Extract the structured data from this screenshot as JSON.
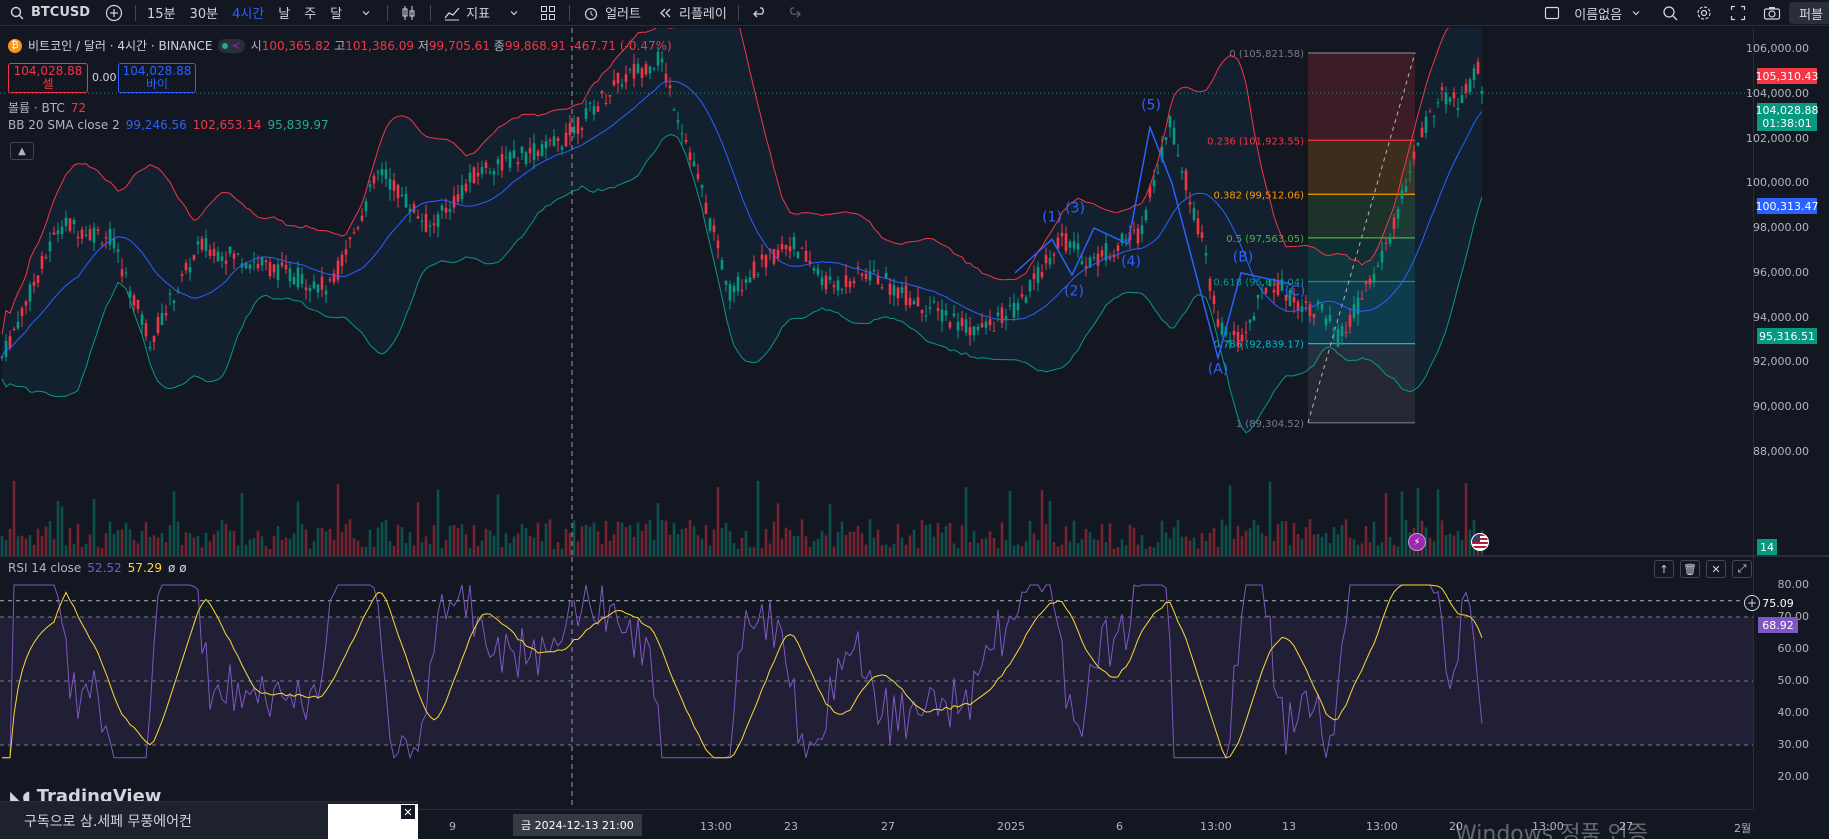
{
  "toolbar": {
    "symbol": "BTCUSD",
    "intervals": [
      "15분",
      "30분",
      "4시간",
      "날",
      "주",
      "달"
    ],
    "active_interval": "4시간",
    "indicators_label": "지표",
    "alert_label": "얼러트",
    "replay_label": "리플레이",
    "layout_name": "이름없음",
    "publish_label": "퍼블"
  },
  "legend": {
    "title": "비트코인 / 달러 · 4시간 · BINANCE",
    "open_label": "시",
    "open": "100,365.82",
    "high_label": "고",
    "high": "101,386.09",
    "low_label": "저",
    "low": "99,705.61",
    "close_label": "종",
    "close": "99,868.91",
    "change": "-467.71 (-0.47%)",
    "sell_price": "104,028.88",
    "sell_label": "셀",
    "spread": "0.00",
    "buy_price": "104,028.88",
    "buy_label": "바이",
    "volume_label": "볼륨 · BTC",
    "volume_value": "72",
    "bb_label": "BB 20 SMA close 2",
    "bb_basis": "99,246.56",
    "bb_upper": "102,653.14",
    "bb_lower": "95,839.97"
  },
  "rsi_legend": {
    "label": "RSI 14 close",
    "rsi": "52.52",
    "ma": "57.29",
    "extra": "ø ø"
  },
  "fib_levels": [
    {
      "label": "0 (105,821.58)",
      "price": 105821.58,
      "color": "#787b86"
    },
    {
      "label": "0.236 (101,923.55)",
      "price": 101923.55,
      "color": "#f23645"
    },
    {
      "label": "0.382 (99,512.06)",
      "price": 99512.06,
      "color": "#ff9800"
    },
    {
      "label": "0.5 (97,563.05)",
      "price": 97563.05,
      "color": "#4caf50"
    },
    {
      "label": "0.618 (95,614.04)",
      "price": 95614.04,
      "color": "#089981"
    },
    {
      "label": "0.786 (92,839.17)",
      "price": 92839.17,
      "color": "#00bcd4"
    },
    {
      "label": "1 (89,304.52)",
      "price": 89304.52,
      "color": "#787b86"
    }
  ],
  "elliott_labels": [
    "(1)",
    "(2)",
    "(3)",
    "(4)",
    "(5)",
    "(A)",
    "(B)",
    "(C)"
  ],
  "price_axis": {
    "ticks": [
      "106,000.00",
      "104,000.00",
      "102,000.00",
      "100,000.00",
      "98,000.00",
      "96,000.00",
      "94,000.00",
      "92,000.00",
      "90,000.00",
      "88,000.00"
    ],
    "tag_high": "105,310.43",
    "tag_last": "104,028.88",
    "tag_countdown": "01:38:01",
    "tag_bb_basis": "100,313.47",
    "tag_bb_lower": "95,316.51",
    "tag_volume": "14",
    "rsi_ticks": [
      "80.00",
      "70.00",
      "60.00",
      "50.00",
      "40.00",
      "30.00",
      "20.00"
    ],
    "rsi_tag_1": "75.09",
    "rsi_tag_2": "68.92"
  },
  "time_axis": {
    "labels": [
      "20",
      "9",
      "13:00",
      "23",
      "27",
      "2025",
      "6",
      "13:00",
      "13",
      "13:00",
      "20",
      "13:00",
      "27",
      "2월"
    ],
    "cursor": "금 2024-12-13  21:00"
  },
  "branding": {
    "logo": "TradingView"
  },
  "ad": {
    "text": "구독으로 삼.세페 무풍에어컨",
    "close": "✕"
  },
  "watermark": "Windows 정품 인증",
  "colors": {
    "up": "#089981",
    "down": "#f23645",
    "bb_basis": "#2962ff",
    "bb_upper": "#f23645",
    "bb_lower": "#089981",
    "rsi": "#7e57c2",
    "rsi_ma": "#fdd835"
  }
}
